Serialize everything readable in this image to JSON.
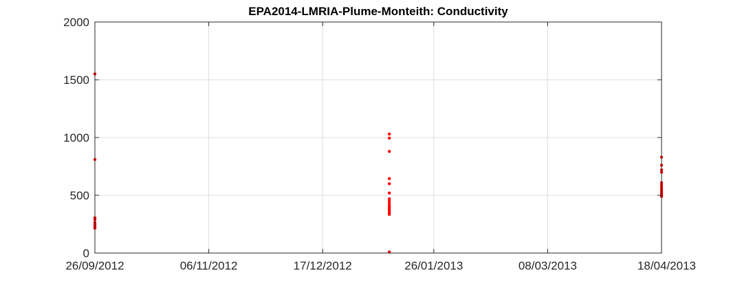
{
  "chart_data": {
    "type": "scatter",
    "title": "EPA2014-LMRIA-Plume-Monteith: Conductivity",
    "xlabel": "",
    "ylabel": "",
    "x_axis_type": "date",
    "xlim": [
      "2012-09-26",
      "2013-04-18"
    ],
    "ylim": [
      0,
      2000
    ],
    "x_ticks": [
      {
        "date": "2012-09-26",
        "label": "26/09/2012"
      },
      {
        "date": "2012-11-06",
        "label": "06/11/2012"
      },
      {
        "date": "2012-12-17",
        "label": "17/12/2012"
      },
      {
        "date": "2013-01-26",
        "label": "26/01/2013"
      },
      {
        "date": "2013-03-08",
        "label": "08/03/2013"
      },
      {
        "date": "2013-04-18",
        "label": "18/04/2013"
      }
    ],
    "y_ticks": [
      {
        "value": 0,
        "label": "0"
      },
      {
        "value": 500,
        "label": "500"
      },
      {
        "value": 1000,
        "label": "1000"
      },
      {
        "value": 1500,
        "label": "1500"
      },
      {
        "value": 2000,
        "label": "2000"
      }
    ],
    "grid": true,
    "marker_color": "#ff0000",
    "series": [
      {
        "points": [
          {
            "x": "2012-09-26",
            "y": 1550
          },
          {
            "x": "2012-09-26",
            "y": 810
          },
          {
            "x": "2012-09-26",
            "y": 305
          },
          {
            "x": "2012-09-26",
            "y": 290
          },
          {
            "x": "2012-09-26",
            "y": 265
          },
          {
            "x": "2012-09-26",
            "y": 250
          },
          {
            "x": "2012-09-26",
            "y": 235
          },
          {
            "x": "2012-09-26",
            "y": 225
          },
          {
            "x": "2012-09-26",
            "y": 215
          },
          {
            "x": "2013-01-10",
            "y": 1030
          },
          {
            "x": "2013-01-10",
            "y": 995
          },
          {
            "x": "2013-01-10",
            "y": 880
          },
          {
            "x": "2013-01-10",
            "y": 645
          },
          {
            "x": "2013-01-10",
            "y": 600
          },
          {
            "x": "2013-01-10",
            "y": 520
          },
          {
            "x": "2013-01-10",
            "y": 470
          },
          {
            "x": "2013-01-10",
            "y": 450
          },
          {
            "x": "2013-01-10",
            "y": 430
          },
          {
            "x": "2013-01-10",
            "y": 410
          },
          {
            "x": "2013-01-10",
            "y": 395
          },
          {
            "x": "2013-01-10",
            "y": 380
          },
          {
            "x": "2013-01-10",
            "y": 365
          },
          {
            "x": "2013-01-10",
            "y": 350
          },
          {
            "x": "2013-01-10",
            "y": 335
          },
          {
            "x": "2013-01-10",
            "y": 10
          },
          {
            "x": "2013-04-18",
            "y": 830
          },
          {
            "x": "2013-04-18",
            "y": 760
          },
          {
            "x": "2013-04-18",
            "y": 720
          },
          {
            "x": "2013-04-18",
            "y": 700
          },
          {
            "x": "2013-04-18",
            "y": 610
          },
          {
            "x": "2013-04-18",
            "y": 590
          },
          {
            "x": "2013-04-18",
            "y": 570
          },
          {
            "x": "2013-04-18",
            "y": 555
          },
          {
            "x": "2013-04-18",
            "y": 540
          },
          {
            "x": "2013-04-18",
            "y": 525
          },
          {
            "x": "2013-04-18",
            "y": 510
          },
          {
            "x": "2013-04-18",
            "y": 500
          },
          {
            "x": "2013-04-18",
            "y": 490
          }
        ]
      }
    ]
  }
}
